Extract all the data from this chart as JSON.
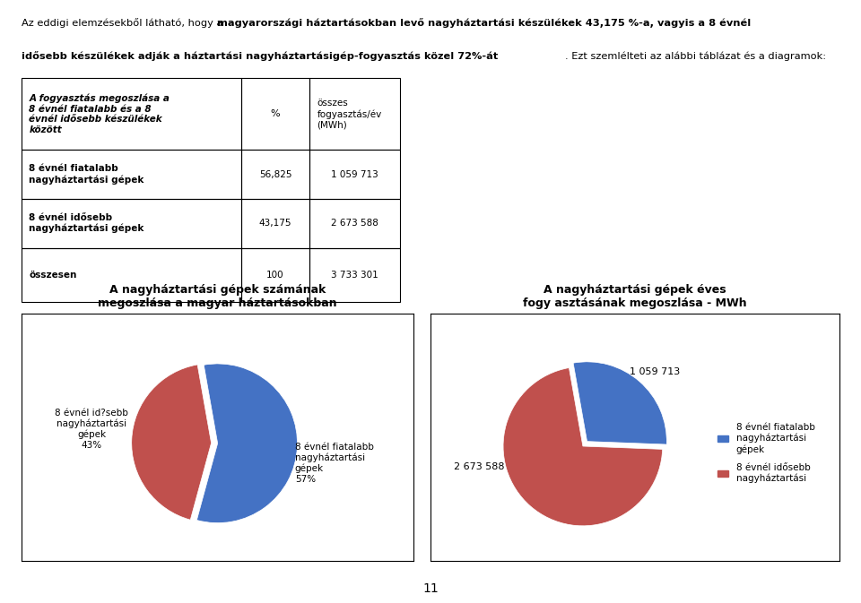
{
  "header_normal1": "Az eddigi elemzésekből látható, hogy a ",
  "header_bold": "magyarországi háztartásokban levő nagyháztartási készülékek 43,175 %-a, vagyis a 8 évnél idősebb készülékek adják a háztartási nagyháztartásigép-fogyasztás közel 72%-át",
  "header_normal2": ". Ezt szemlélteti az alábbi táblázat és a diagramok:",
  "table_header_col1": "A fogyasztás megoszlása a\n8 évnél fiatalabb és a 8\névnél idősebb készülékek\nközött",
  "table_header_col2": "%",
  "table_header_col3": "összes\nfogyasztás/év\n(MWh)",
  "table_row1_col1": "8 évnél fiatalabb\nnagyháztartási gépek",
  "table_row1_col2": "56,825",
  "table_row1_col3": "1 059 713",
  "table_row2_col1": "8 évnél idősebb\nnagyháztartási gépek",
  "table_row2_col2": "43,175",
  "table_row2_col3": "2 673 588",
  "table_row3_col1": "összesen",
  "table_row3_col2": "100",
  "table_row3_col3": "3 733 301",
  "pie1_title_line1": "A nagyháztartási gépek számának",
  "pie1_title_line2": "megoszlása a magyar háztartásokban",
  "pie1_values": [
    57,
    43
  ],
  "pie1_label_young": "8 évnél fiatalabb\nnagyháztartási\ngépek\n57%",
  "pie1_label_old": "8 évnél id?sebb\nnagyháztartási\ngépek\n43%",
  "pie1_colors": [
    "#4472C4",
    "#C0504D"
  ],
  "pie2_title_line1": "A nagyháztartási gépek éves",
  "pie2_title_line2": "fogy asztásának megoszlása - MWh",
  "pie2_values": [
    1059713,
    2673588
  ],
  "pie2_label_young": "1 059 713",
  "pie2_label_old": "2 673 588",
  "pie2_legend_young": "8 évnél fiatalabb\nnagyháztartási\ngépek",
  "pie2_legend_old": "8 évnél idősebb\nnagyháztartási",
  "pie2_colors": [
    "#4472C4",
    "#C0504D"
  ],
  "page_number": "11",
  "bg_color": "#FFFFFF"
}
